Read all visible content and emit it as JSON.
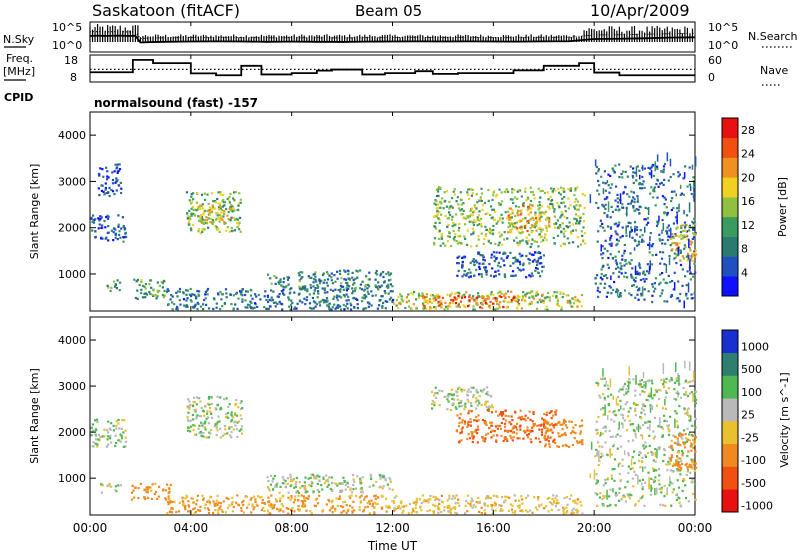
{
  "header": {
    "station": "Saskatoon (fitACF)",
    "beam": "Beam 05",
    "date": "10/Apr/2009"
  },
  "panel_labels": {
    "nsky": "N.Sky",
    "nsky_ticks": [
      "10^5",
      "10^0"
    ],
    "nsearch": "N.Search",
    "nsearch_ticks": [
      "10^5",
      "10^0"
    ],
    "freq": "Freq.",
    "freq_unit": "[MHz]",
    "freq_ticks": [
      "18",
      "8"
    ],
    "nave": "Nave",
    "nave_ticks": [
      "60",
      "0"
    ],
    "cpid": "CPID",
    "cpid_value": "normalsound (fast) -157"
  },
  "chart_data": [
    {
      "type": "line",
      "panel": "noise",
      "x_hours": [
        0,
        0.3,
        0.6,
        0.9,
        1.2,
        1.5,
        1.8,
        2.0,
        2.4,
        3.0,
        4.0,
        5.0,
        6.0,
        7.0,
        8.0,
        9.0,
        10.0,
        11.0,
        12.0,
        13.0,
        14.0,
        15.0,
        16.0,
        17.0,
        18.0,
        19.0,
        20.0,
        21.0,
        22.0,
        23.0,
        24.0
      ],
      "nsearch_level": [
        0.72,
        0.74,
        0.72,
        0.73,
        0.74,
        0.72,
        0.73,
        0.25,
        0.28,
        0.3,
        0.32,
        0.33,
        0.32,
        0.3,
        0.31,
        0.3,
        0.29,
        0.31,
        0.32,
        0.33,
        0.32,
        0.33,
        0.32,
        0.31,
        0.33,
        0.34,
        0.5,
        0.52,
        0.55,
        0.6,
        0.62
      ]
    },
    {
      "type": "line",
      "panel": "freq_nave",
      "freq_steps": [
        [
          0.0,
          1.7,
          11.6
        ],
        [
          1.7,
          2.5,
          16.2
        ],
        [
          2.5,
          4.0,
          15.0
        ],
        [
          4.0,
          5.0,
          11.2
        ],
        [
          5.0,
          6.0,
          10.5
        ],
        [
          6.0,
          6.8,
          14.0
        ],
        [
          6.8,
          8.0,
          10.8
        ],
        [
          8.0,
          9.0,
          11.3
        ],
        [
          9.0,
          9.6,
          12.2
        ],
        [
          9.6,
          10.8,
          12.6
        ],
        [
          10.8,
          11.7,
          10.8
        ],
        [
          11.7,
          12.9,
          11.3
        ],
        [
          12.9,
          13.6,
          12.0
        ],
        [
          13.6,
          14.6,
          11.0
        ],
        [
          14.6,
          16.8,
          11.3
        ],
        [
          16.8,
          18.0,
          12.3
        ],
        [
          18.0,
          19.4,
          14.0
        ],
        [
          19.4,
          20.0,
          15.0
        ],
        [
          20.0,
          21.0,
          11.5
        ],
        [
          21.0,
          24.0,
          10.5
        ]
      ],
      "nave_level": 28,
      "freq_range": [
        8,
        18
      ],
      "nave_range": [
        0,
        60
      ]
    },
    {
      "type": "heatmap",
      "panel": "power",
      "xlabel": "",
      "ylabel": "Slant Range [km]",
      "xlim": [
        0,
        24
      ],
      "ylim": [
        200,
        4500
      ],
      "yticks": [
        "1000",
        "2000",
        "3000",
        "4000"
      ],
      "colorbar_label": "Power [dB]",
      "colorbar_ticks": [
        "4",
        "8",
        "12",
        "16",
        "20",
        "24",
        "28"
      ],
      "colorbar_range": [
        0,
        30
      ],
      "regions": [
        {
          "t0": 0.0,
          "t1": 1.4,
          "r0": 1700,
          "r1": 2300,
          "v": 6
        },
        {
          "t0": 0.3,
          "t1": 1.2,
          "r0": 2700,
          "r1": 3400,
          "v": 5
        },
        {
          "t0": 0.6,
          "t1": 1.2,
          "r0": 650,
          "r1": 900,
          "v": 10
        },
        {
          "t0": 1.7,
          "t1": 3.0,
          "r0": 450,
          "r1": 900,
          "v": 12
        },
        {
          "t0": 3.8,
          "t1": 6.0,
          "r0": 1900,
          "r1": 2800,
          "v": 14
        },
        {
          "t0": 4.2,
          "t1": 5.5,
          "r0": 2100,
          "r1": 2500,
          "v": 18
        },
        {
          "t0": 3.0,
          "t1": 12.0,
          "r0": 250,
          "r1": 700,
          "v": 8
        },
        {
          "t0": 7.0,
          "t1": 12.0,
          "r0": 700,
          "r1": 1100,
          "v": 9
        },
        {
          "t0": 12.0,
          "t1": 19.5,
          "r0": 250,
          "r1": 650,
          "v": 16
        },
        {
          "t0": 13.0,
          "t1": 17.0,
          "r0": 300,
          "r1": 550,
          "v": 24
        },
        {
          "t0": 13.6,
          "t1": 19.6,
          "r0": 1600,
          "r1": 2900,
          "v": 14
        },
        {
          "t0": 16.5,
          "t1": 18.2,
          "r0": 1900,
          "r1": 2500,
          "v": 20
        },
        {
          "t0": 14.5,
          "t1": 18.0,
          "r0": 950,
          "r1": 1500,
          "v": 6
        },
        {
          "t0": 20.0,
          "t1": 24.0,
          "r0": 400,
          "r1": 3400,
          "v": 7
        },
        {
          "t0": 23.0,
          "t1": 24.0,
          "r0": 1300,
          "r1": 2100,
          "v": 18
        }
      ]
    },
    {
      "type": "heatmap",
      "panel": "velocity",
      "xlabel": "Time UT",
      "ylabel": "Slant Range [km]",
      "xlim": [
        0,
        24
      ],
      "ylim": [
        200,
        4500
      ],
      "xticks": [
        "00:00",
        "04:00",
        "08:00",
        "12:00",
        "16:00",
        "20:00",
        "00:00"
      ],
      "yticks": [
        "1000",
        "2000",
        "3000",
        "4000"
      ],
      "colorbar_label": "Velocity [m s^-1]",
      "colorbar_ticks": [
        "1000",
        "500",
        "100",
        "25",
        "-25",
        "-100",
        "-500",
        "-1000"
      ],
      "colorbar_range": [
        -1200,
        1200
      ],
      "regions": [
        {
          "t0": 0.0,
          "t1": 1.4,
          "r0": 1700,
          "r1": 2300,
          "v": 10
        },
        {
          "t0": 0.4,
          "t1": 1.2,
          "r0": 700,
          "r1": 900,
          "v": 10
        },
        {
          "t0": 1.6,
          "t1": 3.2,
          "r0": 550,
          "r1": 900,
          "v": -150
        },
        {
          "t0": 3.8,
          "t1": 6.0,
          "r0": 1900,
          "r1": 2800,
          "v": 10
        },
        {
          "t0": 3.0,
          "t1": 12.0,
          "r0": 250,
          "r1": 650,
          "v": -120
        },
        {
          "t0": 7.0,
          "t1": 12.0,
          "r0": 700,
          "r1": 1100,
          "v": 10
        },
        {
          "t0": 12.0,
          "t1": 19.5,
          "r0": 250,
          "r1": 650,
          "v": -60
        },
        {
          "t0": 13.5,
          "t1": 16.0,
          "r0": 2500,
          "r1": 3000,
          "v": 10
        },
        {
          "t0": 14.5,
          "t1": 18.5,
          "r0": 1800,
          "r1": 2500,
          "v": -500
        },
        {
          "t0": 18.0,
          "t1": 19.5,
          "r0": 1700,
          "r1": 2300,
          "v": -300
        },
        {
          "t0": 20.0,
          "t1": 24.0,
          "r0": 400,
          "r1": 3200,
          "v": 10
        },
        {
          "t0": 23.0,
          "t1": 24.0,
          "r0": 1200,
          "r1": 2000,
          "v": -150
        }
      ]
    }
  ]
}
